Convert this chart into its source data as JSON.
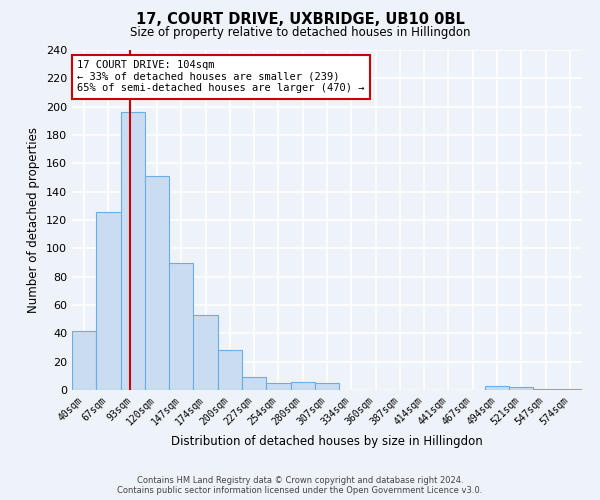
{
  "title": "17, COURT DRIVE, UXBRIDGE, UB10 0BL",
  "subtitle": "Size of property relative to detached houses in Hillingdon",
  "xlabel": "Distribution of detached houses by size in Hillingdon",
  "ylabel": "Number of detached properties",
  "bin_labels": [
    "40sqm",
    "67sqm",
    "93sqm",
    "120sqm",
    "147sqm",
    "174sqm",
    "200sqm",
    "227sqm",
    "254sqm",
    "280sqm",
    "307sqm",
    "334sqm",
    "360sqm",
    "387sqm",
    "414sqm",
    "441sqm",
    "467sqm",
    "494sqm",
    "521sqm",
    "547sqm",
    "574sqm"
  ],
  "bar_values": [
    42,
    126,
    196,
    151,
    90,
    53,
    28,
    9,
    5,
    6,
    5,
    0,
    0,
    0,
    0,
    0,
    0,
    3,
    2,
    1,
    1
  ],
  "bar_color": "#c9dcf0",
  "bar_edgecolor": "#6aaee8",
  "bar_linewidth": 0.8,
  "vline_x": 2.4,
  "vline_color": "#cc0000",
  "vline_linewidth": 1.5,
  "annotation_box_title": "17 COURT DRIVE: 104sqm",
  "annotation_line1": "← 33% of detached houses are smaller (239)",
  "annotation_line2": "65% of semi-detached houses are larger (470) →",
  "annotation_box_color": "#ffffff",
  "annotation_box_edgecolor": "#cc0000",
  "ylim": [
    0,
    240
  ],
  "yticks": [
    0,
    20,
    40,
    60,
    80,
    100,
    120,
    140,
    160,
    180,
    200,
    220,
    240
  ],
  "footer_line1": "Contains HM Land Registry data © Crown copyright and database right 2024.",
  "footer_line2": "Contains public sector information licensed under the Open Government Licence v3.0.",
  "background_color": "#eef2f9",
  "plot_background_color": "#eef2f9"
}
